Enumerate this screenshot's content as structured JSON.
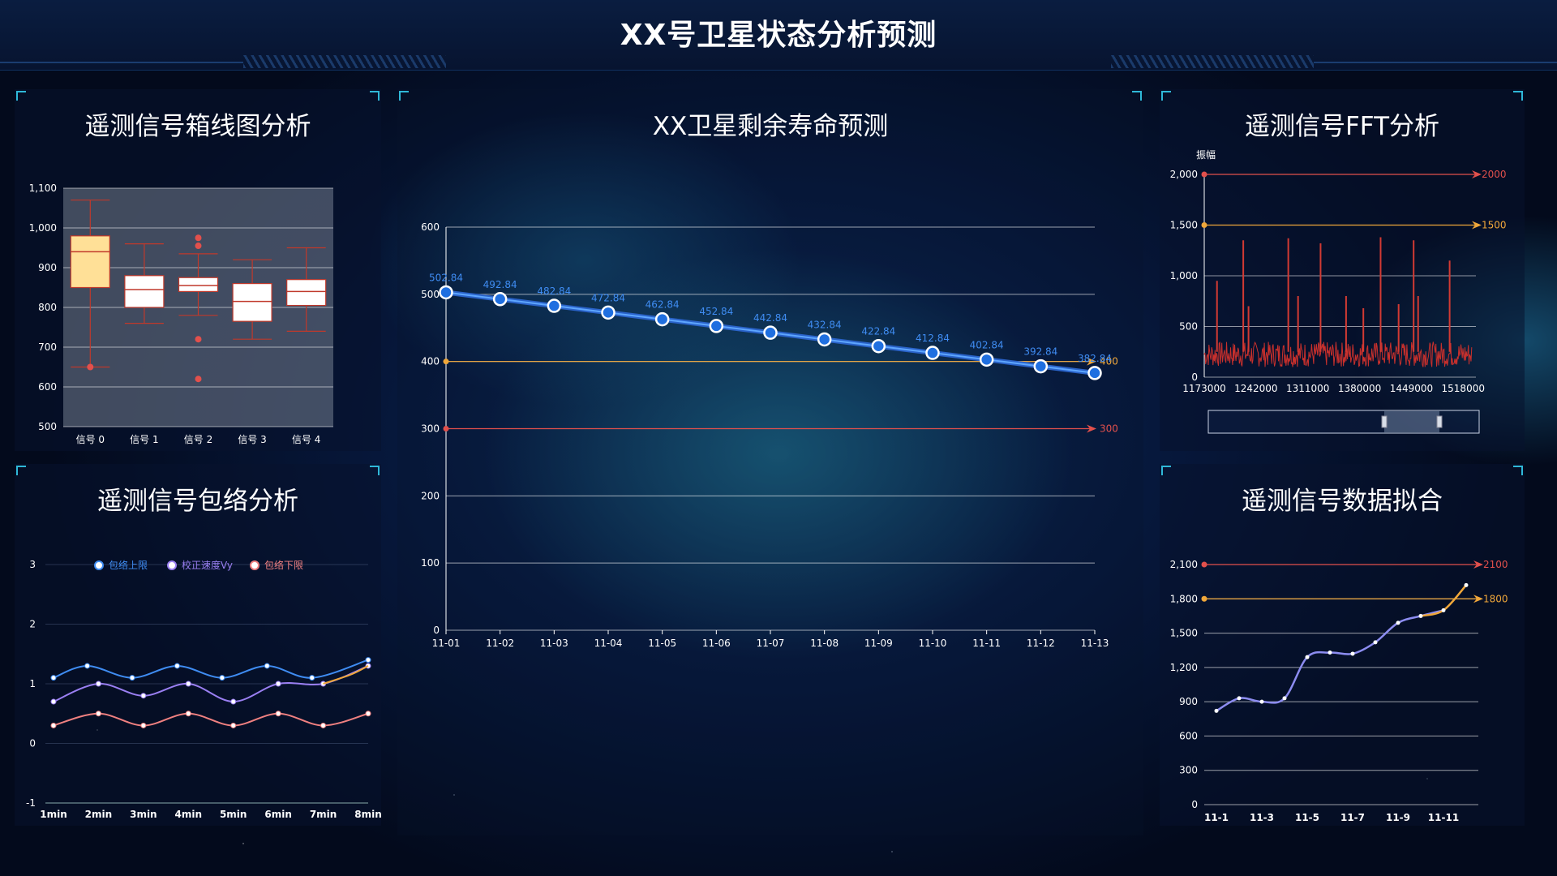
{
  "page": {
    "title": "XX号卫星状态分析预测"
  },
  "colors": {
    "red": "#e2504c",
    "orange": "#f0a73a",
    "blue": "#3f8cf2",
    "purple": "#9a7ff2",
    "pink": "#f08080",
    "box_fill": "#ffe097",
    "box_stroke": "#c0392b"
  },
  "panels": {
    "box": {
      "title": "遥测信号箱线图分析"
    },
    "envelope": {
      "title": "遥测信号包络分析"
    },
    "life": {
      "title": "XX卫星剩余寿命预测"
    },
    "fft": {
      "title": "遥测信号FFT分析"
    },
    "fit": {
      "title": "遥测信号数据拟合"
    }
  },
  "chart_data": [
    {
      "id": "box",
      "type": "boxplot",
      "categories": [
        "信号 0",
        "信号 1",
        "信号 2",
        "信号 3",
        "信号 4"
      ],
      "ylim": [
        500,
        1100
      ],
      "yticks": [
        "1,100",
        "1,000",
        "900",
        "800",
        "700",
        "600",
        "500"
      ],
      "boxes": [
        {
          "min": 650,
          "q1": 850,
          "median": 940,
          "q3": 980,
          "max": 1070
        },
        {
          "min": 760,
          "q1": 800,
          "median": 845,
          "q3": 880,
          "max": 960
        },
        {
          "min": 780,
          "q1": 840,
          "median": 855,
          "q3": 875,
          "max": 935
        },
        {
          "min": 720,
          "q1": 765,
          "median": 815,
          "q3": 860,
          "max": 920
        },
        {
          "min": 740,
          "q1": 805,
          "median": 840,
          "q3": 870,
          "max": 950
        }
      ],
      "outliers": [
        [
          0,
          650
        ],
        [
          2,
          975
        ],
        [
          2,
          955
        ],
        [
          2,
          720
        ],
        [
          2,
          620
        ]
      ]
    },
    {
      "id": "envelope",
      "type": "line",
      "categories": [
        "1min",
        "2min",
        "3min",
        "4min",
        "5min",
        "6min",
        "7min",
        "8min"
      ],
      "ylim": [
        -1,
        3
      ],
      "yticks": [
        "3",
        "2",
        "1",
        "0",
        "-1"
      ],
      "x": [
        0,
        1,
        2,
        3,
        4,
        5,
        6,
        7
      ],
      "series": [
        {
          "name": "包络上限",
          "x": [
            0,
            0.75,
            1.75,
            2.75,
            3.75,
            4.75,
            5.75,
            7
          ],
          "values": [
            1.1,
            1.3,
            1.1,
            1.3,
            1.1,
            1.3,
            1.1,
            1.4
          ]
        },
        {
          "name": "校正速度Vy",
          "x": [
            0,
            1,
            2,
            3,
            4,
            5,
            6,
            7
          ],
          "values": [
            0.7,
            1.0,
            0.8,
            1.0,
            0.7,
            1.0,
            1.0,
            1.3
          ]
        },
        {
          "name": "包络下限",
          "x": [
            0,
            1,
            2,
            3,
            4,
            5,
            6,
            7
          ],
          "values": [
            0.3,
            0.5,
            0.3,
            0.5,
            0.3,
            0.5,
            0.3,
            0.5
          ]
        }
      ],
      "legend": "top-center"
    },
    {
      "id": "life",
      "type": "line",
      "categories": [
        "11-01",
        "11-02",
        "11-03",
        "11-04",
        "11-05",
        "11-06",
        "11-07",
        "11-08",
        "11-09",
        "11-10",
        "11-11",
        "11-12",
        "11-13"
      ],
      "values": [
        502.84,
        492.84,
        482.84,
        472.84,
        462.84,
        452.84,
        442.84,
        432.84,
        422.84,
        412.84,
        402.84,
        392.84,
        382.84
      ],
      "value_labels": [
        "502.84",
        "492.84",
        "482.84",
        "472.84",
        "462.84",
        "452.84",
        "442.84",
        "432.84",
        "422.84",
        "412.84",
        "402.84",
        "392.84",
        "382.84"
      ],
      "ylim": [
        0,
        600
      ],
      "yticks": [
        "600",
        "500",
        "400",
        "300",
        "200",
        "100",
        "0"
      ],
      "thresholds": [
        {
          "value": 400,
          "label": "400",
          "color": "#f0a73a"
        },
        {
          "value": 300,
          "label": "300",
          "color": "#e2504c"
        }
      ]
    },
    {
      "id": "fft",
      "type": "line",
      "ylabel": "振幅",
      "xticks": [
        "1173000",
        "1242000",
        "1311000",
        "1380000",
        "1449000",
        "1518000"
      ],
      "xlim": [
        1173000,
        1535000
      ],
      "ylim": [
        0,
        2000
      ],
      "yticks": [
        "2,000",
        "1,500",
        "1,000",
        "500",
        "0"
      ],
      "noise_band": [
        100,
        350
      ],
      "spikes": [
        [
          1190000,
          950
        ],
        [
          1225000,
          1350
        ],
        [
          1232000,
          700
        ],
        [
          1285000,
          1370
        ],
        [
          1298000,
          800
        ],
        [
          1328000,
          1320
        ],
        [
          1362000,
          800
        ],
        [
          1385000,
          680
        ],
        [
          1408000,
          1380
        ],
        [
          1432000,
          720
        ],
        [
          1452000,
          1350
        ],
        [
          1458000,
          800
        ],
        [
          1500000,
          1150
        ]
      ],
      "thresholds": [
        {
          "value": 2000,
          "label": "2000",
          "color": "#e2504c"
        },
        {
          "value": 1500,
          "label": "1500",
          "color": "#f0a73a"
        }
      ]
    },
    {
      "id": "fit",
      "type": "line",
      "categories": [
        "11-1",
        "11-3",
        "11-5",
        "11-7",
        "11-9",
        "11-11"
      ],
      "x": [
        0,
        1,
        2,
        3,
        4,
        5,
        6,
        7,
        8,
        9,
        10,
        11
      ],
      "values": [
        820,
        930,
        900,
        930,
        1290,
        1330,
        1320,
        1420,
        1590,
        1650,
        1700,
        1920
      ],
      "ylim": [
        0,
        2100
      ],
      "yticks": [
        "2,100",
        "1,800",
        "1,500",
        "1,200",
        "900",
        "600",
        "300",
        "0"
      ],
      "thresholds": [
        {
          "value": 2100,
          "label": "2100",
          "color": "#e2504c"
        },
        {
          "value": 1800,
          "label": "1800",
          "color": "#f0a73a"
        }
      ]
    }
  ]
}
